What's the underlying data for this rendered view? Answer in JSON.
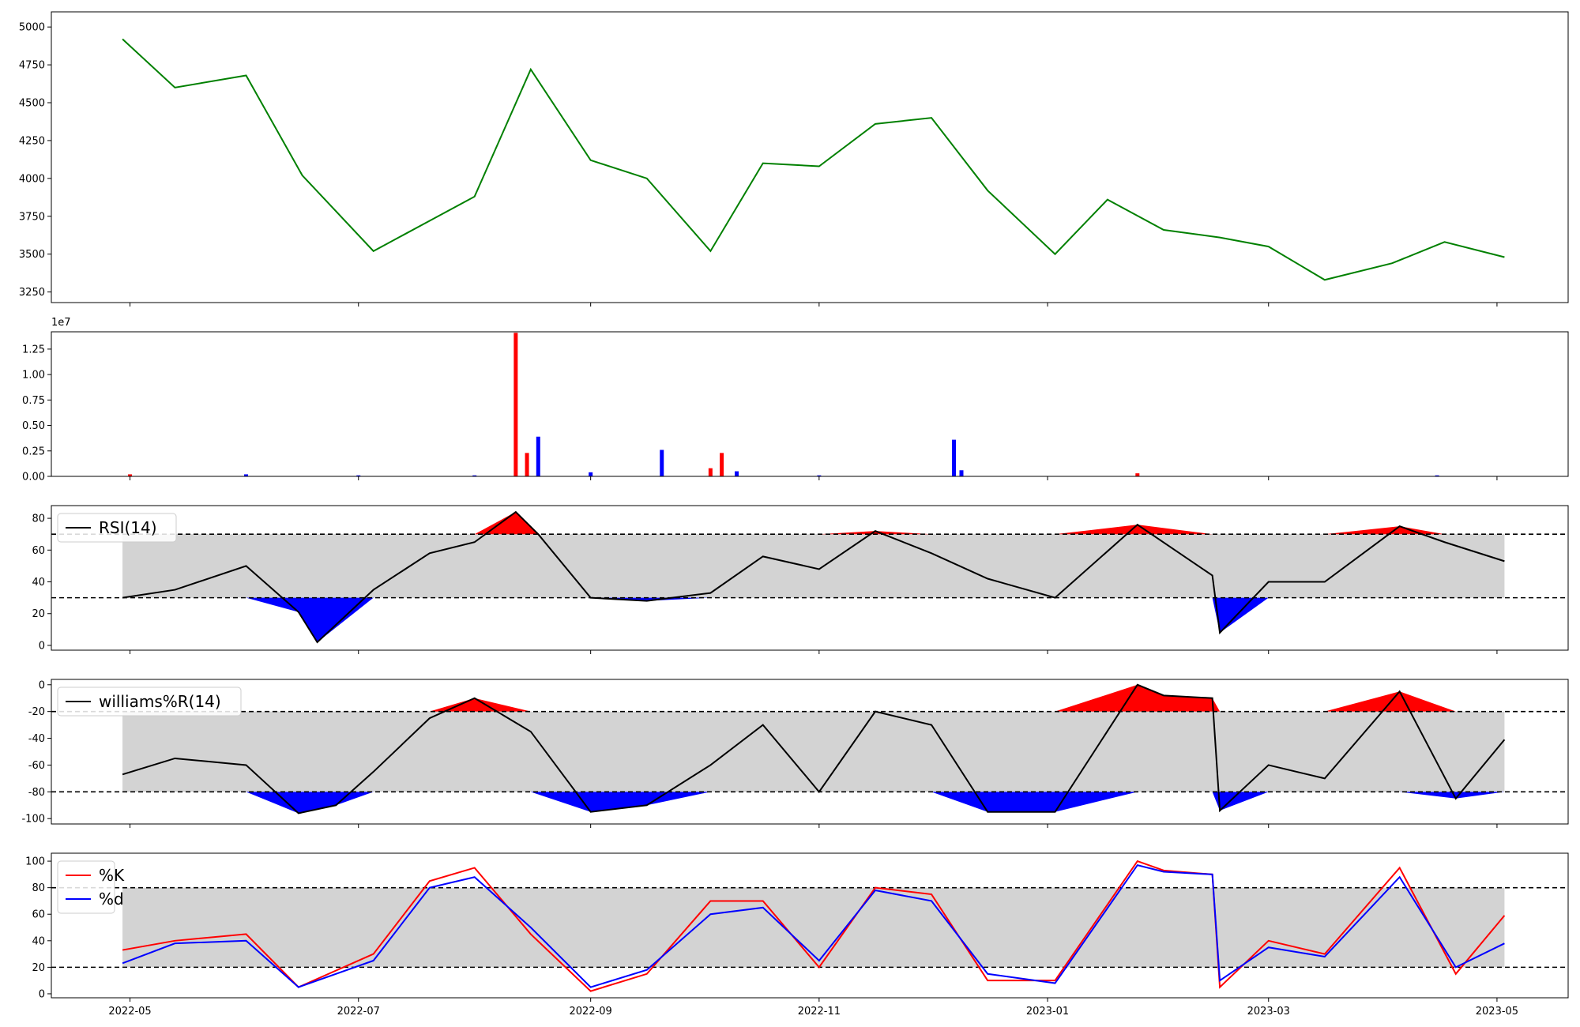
{
  "chart_data": [
    {
      "type": "line",
      "panel": "price",
      "x_dates": [
        "2022-04-29",
        "2022-05-13",
        "2022-06-01",
        "2022-06-16",
        "2022-07-05",
        "2022-07-20",
        "2022-08-01",
        "2022-08-16",
        "2022-09-01",
        "2022-09-16",
        "2022-10-03",
        "2022-10-17",
        "2022-11-01",
        "2022-11-16",
        "2022-12-01",
        "2022-12-16",
        "2023-01-03",
        "2023-01-17",
        "2023-02-01",
        "2023-02-16",
        "2023-03-01",
        "2023-03-16",
        "2023-04-03",
        "2023-04-17",
        "2023-05-03"
      ],
      "series": [
        {
          "color": "#008000",
          "values": [
            4920,
            4600,
            4680,
            4020,
            3520,
            3720,
            3880,
            4720,
            4120,
            4000,
            3520,
            4100,
            4080,
            4360,
            4400,
            3920,
            3500,
            3860,
            3660,
            3610,
            3550,
            3330,
            3440,
            3580,
            3480
          ]
        }
      ],
      "ylim": [
        3180,
        5100
      ],
      "yticks": [
        "3250",
        "3500",
        "3750",
        "4000",
        "4250",
        "4500",
        "4750",
        "5000"
      ]
    },
    {
      "type": "bar",
      "panel": "volume",
      "scale_label": "1e7",
      "x_dates": [
        "2022-05-01",
        "2022-06-01",
        "2022-07-01",
        "2022-08-01",
        "2022-08-12",
        "2022-08-15",
        "2022-08-18",
        "2022-09-01",
        "2022-09-20",
        "2022-10-03",
        "2022-10-06",
        "2022-10-10",
        "2022-11-01",
        "2022-12-07",
        "2022-12-09",
        "2023-01-25",
        "2023-04-15"
      ],
      "values": [
        0.02,
        0.02,
        0.01,
        0.01,
        1.41,
        0.23,
        0.39,
        0.04,
        0.26,
        0.08,
        0.23,
        0.05,
        0.01,
        0.36,
        0.06,
        0.03,
        0.01
      ],
      "colors": [
        "red",
        "blue",
        "blue",
        "blue",
        "red",
        "red",
        "blue",
        "blue",
        "blue",
        "red",
        "red",
        "blue",
        "blue",
        "blue",
        "blue",
        "red",
        "blue"
      ],
      "ylim": [
        0,
        1.42
      ],
      "yticks": [
        "0.00",
        "0.25",
        "0.50",
        "0.75",
        "1.00",
        "1.25"
      ]
    },
    {
      "type": "line",
      "panel": "rsi",
      "legend": [
        "RSI(14)"
      ],
      "x_dates": [
        "2022-04-29",
        "2022-05-13",
        "2022-06-01",
        "2022-06-15",
        "2022-06-20",
        "2022-07-05",
        "2022-07-20",
        "2022-08-01",
        "2022-08-12",
        "2022-08-18",
        "2022-09-01",
        "2022-09-16",
        "2022-10-03",
        "2022-10-17",
        "2022-11-01",
        "2022-11-16",
        "2022-12-01",
        "2022-12-16",
        "2023-01-03",
        "2023-01-25",
        "2023-02-14",
        "2023-02-16",
        "2023-03-01",
        "2023-03-16",
        "2023-04-05",
        "2023-04-17",
        "2023-05-03"
      ],
      "values": [
        30,
        35,
        50,
        21,
        2,
        35,
        58,
        65,
        84,
        70,
        30,
        28,
        33,
        56,
        48,
        72,
        58,
        42,
        30,
        76,
        44,
        8,
        40,
        40,
        75,
        65,
        53
      ],
      "ylim": [
        -3,
        88
      ],
      "yticks": [
        "0",
        "20",
        "40",
        "60",
        "80"
      ],
      "overbought": 70,
      "oversold": 30
    },
    {
      "type": "line",
      "panel": "williams_r",
      "legend": [
        "williams%R(14)"
      ],
      "x_dates": [
        "2022-04-29",
        "2022-05-13",
        "2022-06-01",
        "2022-06-15",
        "2022-06-25",
        "2022-07-05",
        "2022-07-20",
        "2022-08-01",
        "2022-08-16",
        "2022-09-01",
        "2022-09-16",
        "2022-10-03",
        "2022-10-17",
        "2022-11-01",
        "2022-11-16",
        "2022-12-01",
        "2022-12-16",
        "2023-01-03",
        "2023-01-25",
        "2023-02-01",
        "2023-02-14",
        "2023-02-16",
        "2023-03-01",
        "2023-03-16",
        "2023-04-05",
        "2023-04-20",
        "2023-05-03"
      ],
      "values": [
        -67,
        -55,
        -60,
        -96,
        -90,
        -65,
        -25,
        -10,
        -35,
        -95,
        -90,
        -60,
        -30,
        -80,
        -20,
        -30,
        -95,
        -95,
        0,
        -8,
        -10,
        -94,
        -60,
        -70,
        -5,
        -85,
        -41
      ],
      "ylim": [
        -104,
        4
      ],
      "yticks": [
        "-100",
        "-80",
        "-60",
        "-40",
        "-20",
        "0"
      ],
      "overbought": -20,
      "oversold": -80
    },
    {
      "type": "line",
      "panel": "stochastic",
      "legend": [
        "%K",
        "%d"
      ],
      "x_dates": [
        "2022-04-29",
        "2022-05-13",
        "2022-06-01",
        "2022-06-15",
        "2022-07-05",
        "2022-07-20",
        "2022-08-01",
        "2022-08-16",
        "2022-09-01",
        "2022-09-16",
        "2022-10-03",
        "2022-10-17",
        "2022-11-01",
        "2022-11-16",
        "2022-12-01",
        "2022-12-16",
        "2023-01-03",
        "2023-01-25",
        "2023-02-01",
        "2023-02-14",
        "2023-02-16",
        "2023-03-01",
        "2023-03-16",
        "2023-04-05",
        "2023-04-20",
        "2023-05-03"
      ],
      "series": [
        {
          "name": "%K",
          "color": "#ff0000",
          "values": [
            33,
            40,
            45,
            5,
            30,
            85,
            95,
            45,
            2,
            15,
            70,
            70,
            20,
            80,
            75,
            10,
            10,
            100,
            93,
            90,
            5,
            40,
            30,
            95,
            15,
            59
          ]
        },
        {
          "name": "%d",
          "color": "#0000ff",
          "values": [
            23,
            38,
            40,
            5,
            25,
            80,
            88,
            50,
            5,
            18,
            60,
            65,
            25,
            78,
            70,
            15,
            8,
            97,
            92,
            90,
            10,
            35,
            28,
            88,
            20,
            38
          ]
        }
      ],
      "ylim": [
        -3,
        106
      ],
      "yticks": [
        "0",
        "20",
        "40",
        "60",
        "80",
        "100"
      ],
      "overbought": 80,
      "oversold": 20
    }
  ],
  "x_axis": {
    "range": [
      "2022-04-10",
      "2023-05-20"
    ],
    "tick_dates": [
      "2022-05-01",
      "2022-07-01",
      "2022-09-01",
      "2022-11-01",
      "2023-01-01",
      "2023-03-01",
      "2023-05-01"
    ],
    "tick_labels": [
      "2022-05",
      "2022-07",
      "2022-09",
      "2022-11",
      "2023-01",
      "2023-03",
      "2023-05"
    ]
  }
}
